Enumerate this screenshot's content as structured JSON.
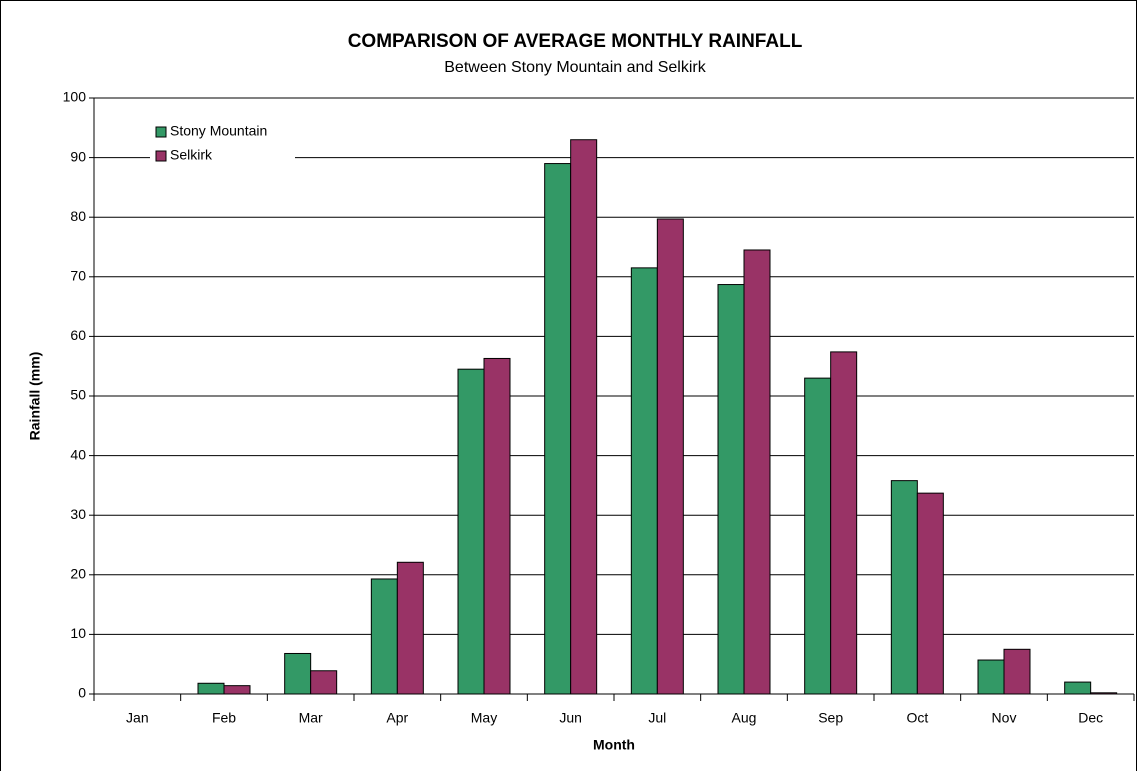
{
  "chart_data": {
    "type": "bar",
    "title": "COMPARISON OF AVERAGE MONTHLY RAINFALL",
    "subtitle": "Between Stony Mountain and Selkirk",
    "x_label": "Month",
    "y_label": "Rainfall (mm)",
    "categories": [
      "Jan",
      "Feb",
      "Mar",
      "Apr",
      "May",
      "Jun",
      "Jul",
      "Aug",
      "Sep",
      "Oct",
      "Nov",
      "Dec"
    ],
    "series": [
      {
        "name": "Stony Mountain",
        "color": "#339966",
        "values": [
          0,
          1.8,
          6.8,
          19.3,
          54.5,
          89,
          71.5,
          68.7,
          53,
          35.8,
          5.7,
          2.0
        ]
      },
      {
        "name": "Selkirk",
        "color": "#993366",
        "values": [
          0,
          1.4,
          3.9,
          22.1,
          56.3,
          93,
          79.7,
          74.5,
          57.4,
          33.7,
          7.5,
          0.2
        ]
      }
    ],
    "ylim": [
      0,
      100
    ],
    "yticks": [
      0,
      10,
      20,
      30,
      40,
      50,
      60,
      70,
      80,
      90,
      100
    ],
    "grid": true,
    "legend": "top-left"
  }
}
